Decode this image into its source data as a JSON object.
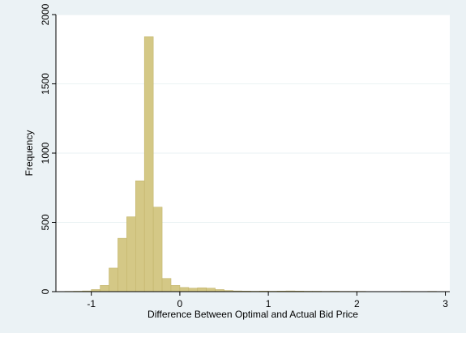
{
  "chart_data": {
    "type": "bar",
    "subtype": "histogram",
    "xlabel": "Difference Between Optimal and Actual Bid Price",
    "ylabel": "Frequency",
    "xlim": [
      -1.4,
      3.05
    ],
    "ylim": [
      0,
      2000
    ],
    "x_ticks": [
      -1,
      0,
      1,
      2,
      3
    ],
    "x_tick_labels": [
      "-1",
      "0",
      "1",
      "2",
      "3"
    ],
    "y_ticks": [
      0,
      500,
      1000,
      1500,
      2000
    ],
    "y_tick_labels": [
      "0",
      "500",
      "1000",
      "1500",
      "2000"
    ],
    "grid": true,
    "bin_width": 0.1,
    "bins": [
      {
        "x0": -1.3,
        "x1": -1.2,
        "value": 2
      },
      {
        "x0": -1.2,
        "x1": -1.1,
        "value": 3
      },
      {
        "x0": -1.1,
        "x1": -1.0,
        "value": 5
      },
      {
        "x0": -1.0,
        "x1": -0.9,
        "value": 15
      },
      {
        "x0": -0.9,
        "x1": -0.8,
        "value": 45
      },
      {
        "x0": -0.8,
        "x1": -0.7,
        "value": 170
      },
      {
        "x0": -0.7,
        "x1": -0.6,
        "value": 385
      },
      {
        "x0": -0.6,
        "x1": -0.5,
        "value": 540
      },
      {
        "x0": -0.5,
        "x1": -0.4,
        "value": 800
      },
      {
        "x0": -0.4,
        "x1": -0.3,
        "value": 1840
      },
      {
        "x0": -0.3,
        "x1": -0.2,
        "value": 610
      },
      {
        "x0": -0.2,
        "x1": -0.1,
        "value": 95
      },
      {
        "x0": -0.1,
        "x1": 0.0,
        "value": 45
      },
      {
        "x0": 0.0,
        "x1": 0.1,
        "value": 30
      },
      {
        "x0": 0.1,
        "x1": 0.2,
        "value": 25
      },
      {
        "x0": 0.2,
        "x1": 0.3,
        "value": 28
      },
      {
        "x0": 0.3,
        "x1": 0.4,
        "value": 25
      },
      {
        "x0": 0.4,
        "x1": 0.5,
        "value": 15
      },
      {
        "x0": 0.5,
        "x1": 0.6,
        "value": 8
      },
      {
        "x0": 0.6,
        "x1": 0.7,
        "value": 5
      },
      {
        "x0": 0.7,
        "x1": 0.8,
        "value": 4
      },
      {
        "x0": 0.8,
        "x1": 0.9,
        "value": 3
      },
      {
        "x0": 0.9,
        "x1": 1.0,
        "value": 4
      },
      {
        "x0": 1.0,
        "x1": 1.1,
        "value": 3
      },
      {
        "x0": 1.1,
        "x1": 1.2,
        "value": 4
      },
      {
        "x0": 1.2,
        "x1": 1.3,
        "value": 5
      },
      {
        "x0": 1.3,
        "x1": 1.4,
        "value": 4
      },
      {
        "x0": 1.4,
        "x1": 1.5,
        "value": 3
      },
      {
        "x0": 1.5,
        "x1": 1.6,
        "value": 3
      },
      {
        "x0": 1.6,
        "x1": 1.7,
        "value": 2
      },
      {
        "x0": 1.7,
        "x1": 1.8,
        "value": 3
      },
      {
        "x0": 1.8,
        "x1": 1.9,
        "value": 2
      },
      {
        "x0": 1.9,
        "x1": 2.0,
        "value": 2
      },
      {
        "x0": 2.0,
        "x1": 2.1,
        "value": 2
      },
      {
        "x0": 2.1,
        "x1": 2.2,
        "value": 1
      },
      {
        "x0": 2.2,
        "x1": 2.3,
        "value": 1
      },
      {
        "x0": 2.3,
        "x1": 2.4,
        "value": 1
      },
      {
        "x0": 2.4,
        "x1": 2.5,
        "value": 1
      },
      {
        "x0": 2.5,
        "x1": 2.6,
        "value": 2
      },
      {
        "x0": 2.6,
        "x1": 2.7,
        "value": 1
      },
      {
        "x0": 2.7,
        "x1": 2.8,
        "value": 1
      },
      {
        "x0": 2.8,
        "x1": 2.9,
        "value": 2
      },
      {
        "x0": 2.9,
        "x1": 3.0,
        "value": 1
      }
    ],
    "colors": {
      "bar_fill": "#d4c886",
      "bar_stroke": "#c3b56c",
      "plot_background": "#ffffff",
      "outer_background": "#ebf2f5",
      "grid": "#eaf2f3"
    }
  }
}
